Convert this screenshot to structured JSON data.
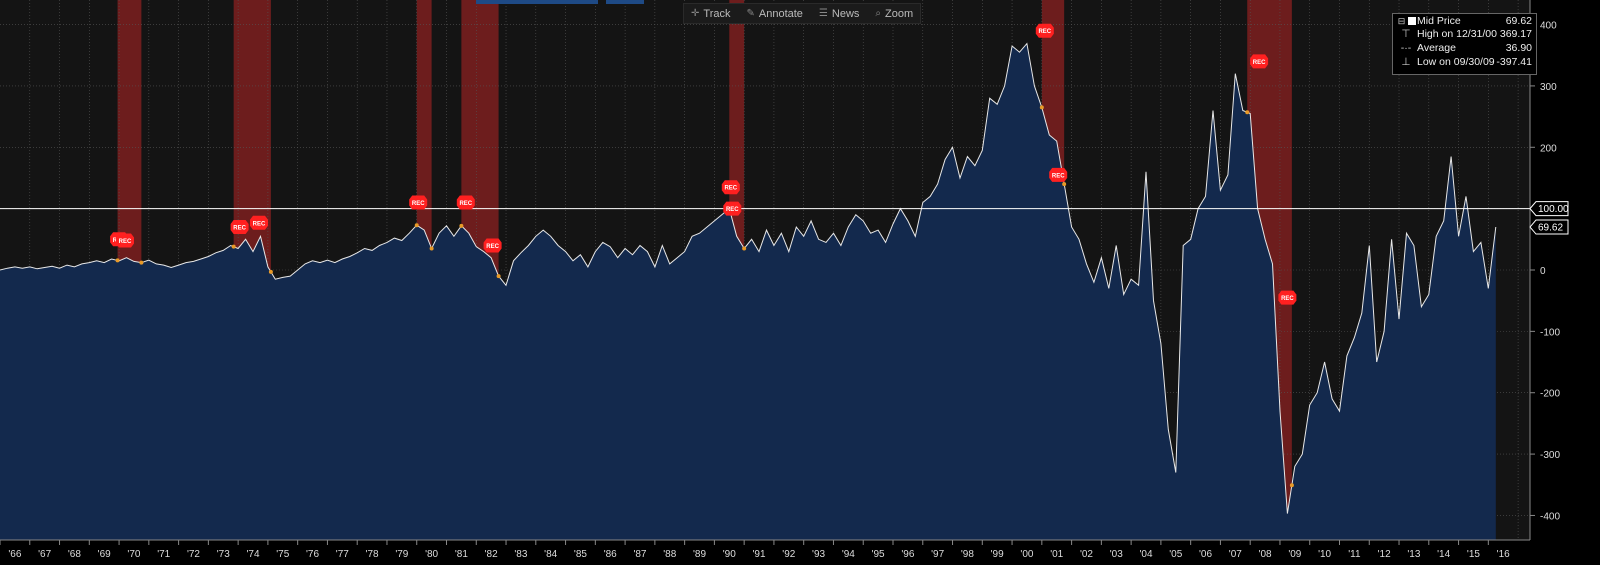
{
  "toolbar": {
    "track": "Track",
    "annotate": "Annotate",
    "news": "News",
    "zoom": "Zoom",
    "track_icon": "crosshair-icon",
    "annotate_icon": "pencil-icon",
    "news_icon": "news-icon",
    "zoom_icon": "magnifier-icon"
  },
  "legend": {
    "mid_price_label": "Mid Price",
    "mid_price_value": "69.62",
    "high_label": "High on 12/31/00",
    "high_value": "369.17",
    "average_label": "Average",
    "average_value": "36.90",
    "low_label": "Low on 09/30/09",
    "low_value": "-397.41"
  },
  "colors": {
    "background": "#141414",
    "area_fill": "#13294d",
    "line": "#e8e8e8",
    "recession": "#8b2020",
    "marker": "#ff2020",
    "point": "#e89a28"
  },
  "chart_data": {
    "type": "area",
    "xlim": [
      1966.0,
      2017.4
    ],
    "ylim": [
      -440,
      440
    ],
    "yticks": [
      400,
      300,
      200,
      100,
      0,
      -100,
      -200,
      -300,
      -400
    ],
    "reference_line": {
      "value": 100,
      "label": "100.00"
    },
    "last_value_label": "69.62",
    "marker_label": "REC",
    "xtick_labels": [
      "'66",
      "'67",
      "'68",
      "'69",
      "'70",
      "'71",
      "'72",
      "'73",
      "'74",
      "'75",
      "'76",
      "'77",
      "'78",
      "'79",
      "'80",
      "'81",
      "'82",
      "'83",
      "'84",
      "'85",
      "'86",
      "'87",
      "'88",
      "'89",
      "'90",
      "'91",
      "'92",
      "'93",
      "'94",
      "'95",
      "'96",
      "'97",
      "'98",
      "'99",
      "'00",
      "'01",
      "'02",
      "'03",
      "'04",
      "'05",
      "'06",
      "'07",
      "'08",
      "'09",
      "'10",
      "'11",
      "'12",
      "'13",
      "'14",
      "'15",
      "'16"
    ],
    "recessions": [
      [
        1969.95,
        1970.75
      ],
      [
        1973.85,
        1975.1
      ],
      [
        1980.0,
        1980.5
      ],
      [
        1981.5,
        1982.75
      ],
      [
        1990.5,
        1991.0
      ],
      [
        2001.0,
        2001.75
      ],
      [
        2007.9,
        2009.4
      ]
    ],
    "rec_markers": [
      [
        1970.0,
        50
      ],
      [
        1970.2,
        48
      ],
      [
        1974.05,
        70
      ],
      [
        1974.7,
        77
      ],
      [
        1980.05,
        110
      ],
      [
        1981.65,
        110
      ],
      [
        1982.55,
        40
      ],
      [
        1990.55,
        135
      ],
      [
        1990.6,
        100
      ],
      [
        2001.1,
        390
      ],
      [
        2001.55,
        155
      ],
      [
        2008.3,
        340
      ],
      [
        2009.25,
        -45
      ]
    ],
    "points": [
      [
        1966.0,
        0
      ],
      [
        1966.25,
        3
      ],
      [
        1966.5,
        5
      ],
      [
        1966.75,
        3
      ],
      [
        1967.0,
        5
      ],
      [
        1967.25,
        2
      ],
      [
        1967.5,
        4
      ],
      [
        1967.75,
        6
      ],
      [
        1968.0,
        3
      ],
      [
        1968.25,
        8
      ],
      [
        1968.5,
        5
      ],
      [
        1968.75,
        10
      ],
      [
        1969.0,
        12
      ],
      [
        1969.25,
        15
      ],
      [
        1969.5,
        12
      ],
      [
        1969.75,
        18
      ],
      [
        1970.0,
        15
      ],
      [
        1970.25,
        20
      ],
      [
        1970.5,
        14
      ],
      [
        1970.75,
        12
      ],
      [
        1971.0,
        16
      ],
      [
        1971.25,
        10
      ],
      [
        1971.5,
        8
      ],
      [
        1971.75,
        4
      ],
      [
        1972.0,
        8
      ],
      [
        1972.25,
        12
      ],
      [
        1972.5,
        14
      ],
      [
        1972.75,
        18
      ],
      [
        1973.0,
        22
      ],
      [
        1973.25,
        28
      ],
      [
        1973.5,
        32
      ],
      [
        1973.75,
        40
      ],
      [
        1974.0,
        35
      ],
      [
        1974.25,
        50
      ],
      [
        1974.5,
        30
      ],
      [
        1974.75,
        55
      ],
      [
        1975.0,
        5
      ],
      [
        1975.25,
        -15
      ],
      [
        1975.5,
        -12
      ],
      [
        1975.75,
        -10
      ],
      [
        1976.0,
        0
      ],
      [
        1976.25,
        10
      ],
      [
        1976.5,
        15
      ],
      [
        1976.75,
        12
      ],
      [
        1977.0,
        16
      ],
      [
        1977.25,
        12
      ],
      [
        1977.5,
        18
      ],
      [
        1977.75,
        22
      ],
      [
        1978.0,
        28
      ],
      [
        1978.25,
        35
      ],
      [
        1978.5,
        32
      ],
      [
        1978.75,
        40
      ],
      [
        1979.0,
        45
      ],
      [
        1979.25,
        52
      ],
      [
        1979.5,
        48
      ],
      [
        1979.75,
        60
      ],
      [
        1980.0,
        73
      ],
      [
        1980.25,
        65
      ],
      [
        1980.5,
        35
      ],
      [
        1980.75,
        60
      ],
      [
        1981.0,
        72
      ],
      [
        1981.25,
        55
      ],
      [
        1981.5,
        72
      ],
      [
        1981.75,
        60
      ],
      [
        1982.0,
        38
      ],
      [
        1982.25,
        30
      ],
      [
        1982.5,
        20
      ],
      [
        1982.75,
        -10
      ],
      [
        1983.0,
        -25
      ],
      [
        1983.25,
        15
      ],
      [
        1983.5,
        28
      ],
      [
        1983.75,
        40
      ],
      [
        1984.0,
        55
      ],
      [
        1984.25,
        65
      ],
      [
        1984.5,
        55
      ],
      [
        1984.75,
        40
      ],
      [
        1985.0,
        30
      ],
      [
        1985.25,
        15
      ],
      [
        1985.5,
        25
      ],
      [
        1985.75,
        5
      ],
      [
        1986.0,
        30
      ],
      [
        1986.25,
        45
      ],
      [
        1986.5,
        38
      ],
      [
        1986.75,
        20
      ],
      [
        1987.0,
        35
      ],
      [
        1987.25,
        25
      ],
      [
        1987.5,
        40
      ],
      [
        1987.75,
        30
      ],
      [
        1988.0,
        5
      ],
      [
        1988.25,
        40
      ],
      [
        1988.5,
        10
      ],
      [
        1988.75,
        20
      ],
      [
        1989.0,
        30
      ],
      [
        1989.25,
        55
      ],
      [
        1989.5,
        60
      ],
      [
        1989.75,
        70
      ],
      [
        1990.0,
        80
      ],
      [
        1990.25,
        90
      ],
      [
        1990.5,
        100
      ],
      [
        1990.75,
        55
      ],
      [
        1991.0,
        35
      ],
      [
        1991.25,
        50
      ],
      [
        1991.5,
        30
      ],
      [
        1991.75,
        65
      ],
      [
        1992.0,
        40
      ],
      [
        1992.25,
        60
      ],
      [
        1992.5,
        30
      ],
      [
        1992.75,
        70
      ],
      [
        1993.0,
        55
      ],
      [
        1993.25,
        80
      ],
      [
        1993.5,
        50
      ],
      [
        1993.75,
        45
      ],
      [
        1994.0,
        60
      ],
      [
        1994.25,
        40
      ],
      [
        1994.5,
        70
      ],
      [
        1994.75,
        90
      ],
      [
        1995.0,
        80
      ],
      [
        1995.25,
        60
      ],
      [
        1995.5,
        65
      ],
      [
        1995.75,
        45
      ],
      [
        1996.0,
        75
      ],
      [
        1996.25,
        100
      ],
      [
        1996.5,
        80
      ],
      [
        1996.75,
        55
      ],
      [
        1997.0,
        110
      ],
      [
        1997.25,
        120
      ],
      [
        1997.5,
        140
      ],
      [
        1997.75,
        180
      ],
      [
        1998.0,
        200
      ],
      [
        1998.25,
        150
      ],
      [
        1998.5,
        185
      ],
      [
        1998.75,
        170
      ],
      [
        1999.0,
        195
      ],
      [
        1999.25,
        280
      ],
      [
        1999.5,
        270
      ],
      [
        1999.75,
        300
      ],
      [
        2000.0,
        365
      ],
      [
        2000.25,
        355
      ],
      [
        2000.5,
        369
      ],
      [
        2000.75,
        300
      ],
      [
        2001.0,
        265
      ],
      [
        2001.25,
        220
      ],
      [
        2001.5,
        210
      ],
      [
        2001.75,
        140
      ],
      [
        2002.0,
        70
      ],
      [
        2002.25,
        50
      ],
      [
        2002.5,
        10
      ],
      [
        2002.75,
        -20
      ],
      [
        2003.0,
        20
      ],
      [
        2003.25,
        -30
      ],
      [
        2003.5,
        40
      ],
      [
        2003.75,
        -40
      ],
      [
        2004.0,
        -15
      ],
      [
        2004.25,
        -25
      ],
      [
        2004.5,
        160
      ],
      [
        2004.75,
        -50
      ],
      [
        2005.0,
        -120
      ],
      [
        2005.25,
        -260
      ],
      [
        2005.5,
        -330
      ],
      [
        2005.75,
        40
      ],
      [
        2006.0,
        50
      ],
      [
        2006.25,
        100
      ],
      [
        2006.5,
        120
      ],
      [
        2006.75,
        260
      ],
      [
        2007.0,
        130
      ],
      [
        2007.25,
        155
      ],
      [
        2007.5,
        320
      ],
      [
        2007.75,
        260
      ],
      [
        2008.0,
        255
      ],
      [
        2008.25,
        100
      ],
      [
        2008.5,
        50
      ],
      [
        2008.75,
        10
      ],
      [
        2009.0,
        -230
      ],
      [
        2009.25,
        -397
      ],
      [
        2009.5,
        -320
      ],
      [
        2009.75,
        -300
      ],
      [
        2010.0,
        -220
      ],
      [
        2010.25,
        -200
      ],
      [
        2010.5,
        -150
      ],
      [
        2010.75,
        -210
      ],
      [
        2011.0,
        -230
      ],
      [
        2011.25,
        -140
      ],
      [
        2011.5,
        -110
      ],
      [
        2011.75,
        -70
      ],
      [
        2012.0,
        40
      ],
      [
        2012.25,
        -150
      ],
      [
        2012.5,
        -100
      ],
      [
        2012.75,
        50
      ],
      [
        2013.0,
        -80
      ],
      [
        2013.25,
        60
      ],
      [
        2013.5,
        40
      ],
      [
        2013.75,
        -60
      ],
      [
        2014.0,
        -40
      ],
      [
        2014.25,
        55
      ],
      [
        2014.5,
        80
      ],
      [
        2014.75,
        185
      ],
      [
        2015.0,
        55
      ],
      [
        2015.25,
        120
      ],
      [
        2015.5,
        30
      ],
      [
        2015.75,
        45
      ],
      [
        2016.0,
        -30
      ],
      [
        2016.25,
        70
      ]
    ]
  }
}
